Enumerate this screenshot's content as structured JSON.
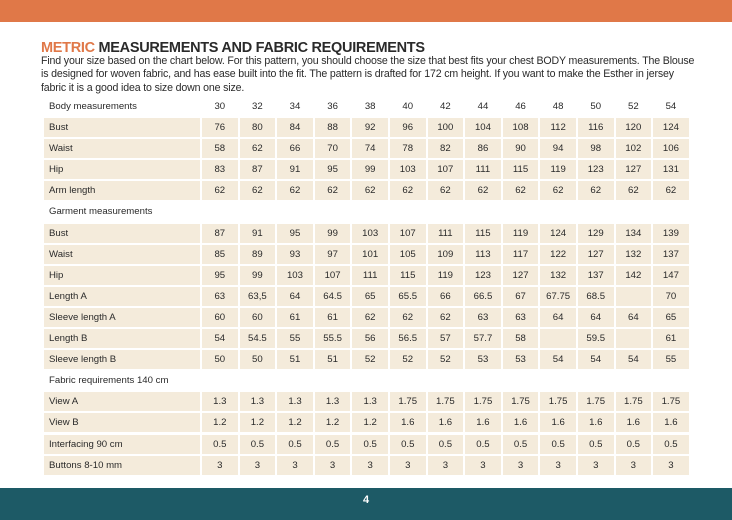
{
  "title": {
    "accent": "METRIC",
    "rest": " MEASUREMENTS AND FABRIC REQUIREMENTS"
  },
  "intro": "Find your size based on the chart below. For this pattern, you should choose the size that best fits your chest BODY measurements.  The Blouse is designed for woven fabric, and has ease built into the fit. The pattern is drafted for 172 cm height. If you want to make the Esther in jersey fabric it is a good idea to size down one size.",
  "sizes": [
    "30",
    "32",
    "34",
    "36",
    "38",
    "40",
    "42",
    "44",
    "46",
    "48",
    "50",
    "52",
    "54"
  ],
  "sections": [
    {
      "heading": "Body measurements",
      "show_sizes": true,
      "rows": [
        {
          "label": "Bust",
          "values": [
            "76",
            "80",
            "84",
            "88",
            "92",
            "96",
            "100",
            "104",
            "108",
            "112",
            "116",
            "120",
            "124"
          ]
        },
        {
          "label": "Waist",
          "values": [
            "58",
            "62",
            "66",
            "70",
            "74",
            "78",
            "82",
            "86",
            "90",
            "94",
            "98",
            "102",
            "106"
          ]
        },
        {
          "label": "Hip",
          "values": [
            "83",
            "87",
            "91",
            "95",
            "99",
            "103",
            "107",
            "111",
            "115",
            "119",
            "123",
            "127",
            "131"
          ]
        },
        {
          "label": "Arm length",
          "values": [
            "62",
            "62",
            "62",
            "62",
            "62",
            "62",
            "62",
            "62",
            "62",
            "62",
            "62",
            "62",
            "62"
          ]
        }
      ]
    },
    {
      "heading": "Garment measurements",
      "show_sizes": false,
      "rows": [
        {
          "label": "Bust",
          "values": [
            "87",
            "91",
            "95",
            "99",
            "103",
            "107",
            "111",
            "115",
            "119",
            "124",
            "129",
            "134",
            "139"
          ]
        },
        {
          "label": "Waist",
          "values": [
            "85",
            "89",
            "93",
            "97",
            "101",
            "105",
            "109",
            "113",
            "117",
            "122",
            "127",
            "132",
            "137"
          ]
        },
        {
          "label": "Hip",
          "values": [
            "95",
            "99",
            "103",
            "107",
            "111",
            "115",
            "119",
            "123",
            "127",
            "132",
            "137",
            "142",
            "147"
          ]
        },
        {
          "label": "Length A",
          "values": [
            "63",
            "63,5",
            "64",
            "64.5",
            "65",
            "65.5",
            "66",
            "66.5",
            "67",
            "67.75",
            "68.5",
            "",
            "70"
          ]
        },
        {
          "label": "Sleeve length A",
          "values": [
            "60",
            "60",
            "61",
            "61",
            "62",
            "62",
            "62",
            "63",
            "63",
            "64",
            "64",
            "64",
            "65"
          ]
        },
        {
          "label": "Length B",
          "values": [
            "54",
            "54.5",
            "55",
            "55.5",
            "56",
            "56.5",
            "57",
            "57.7",
            "58",
            "",
            "59.5",
            "",
            "61"
          ]
        },
        {
          "label": "Sleeve length B",
          "values": [
            "50",
            "50",
            "51",
            "51",
            "52",
            "52",
            "52",
            "53",
            "53",
            "54",
            "54",
            "54",
            "55"
          ]
        }
      ]
    },
    {
      "heading": "Fabric requirements 140 cm",
      "show_sizes": false,
      "rows": [
        {
          "label": "View A",
          "values": [
            "1.3",
            "1.3",
            "1.3",
            "1.3",
            "1.3",
            "1.75",
            "1.75",
            "1.75",
            "1.75",
            "1.75",
            "1.75",
            "1.75",
            "1.75"
          ]
        },
        {
          "label": "View B",
          "values": [
            "1.2",
            "1.2",
            "1.2",
            "1.2",
            "1.2",
            "1.6",
            "1.6",
            "1.6",
            "1.6",
            "1.6",
            "1.6",
            "1.6",
            "1.6"
          ]
        },
        {
          "label": "Interfacing 90 cm",
          "values": [
            "0.5",
            "0.5",
            "0.5",
            "0.5",
            "0.5",
            "0.5",
            "0.5",
            "0.5",
            "0.5",
            "0.5",
            "0.5",
            "0.5",
            "0.5"
          ]
        },
        {
          "label": "Buttons 8-10 mm",
          "values": [
            "3",
            "3",
            "3",
            "3",
            "3",
            "3",
            "3",
            "3",
            "3",
            "3",
            "3",
            "3",
            "3"
          ]
        }
      ]
    }
  ],
  "footer": {
    "page_number": "4"
  },
  "colors": {
    "accent": "#e07848",
    "footer": "#1d5a66",
    "cell": "#f4ebdb"
  }
}
